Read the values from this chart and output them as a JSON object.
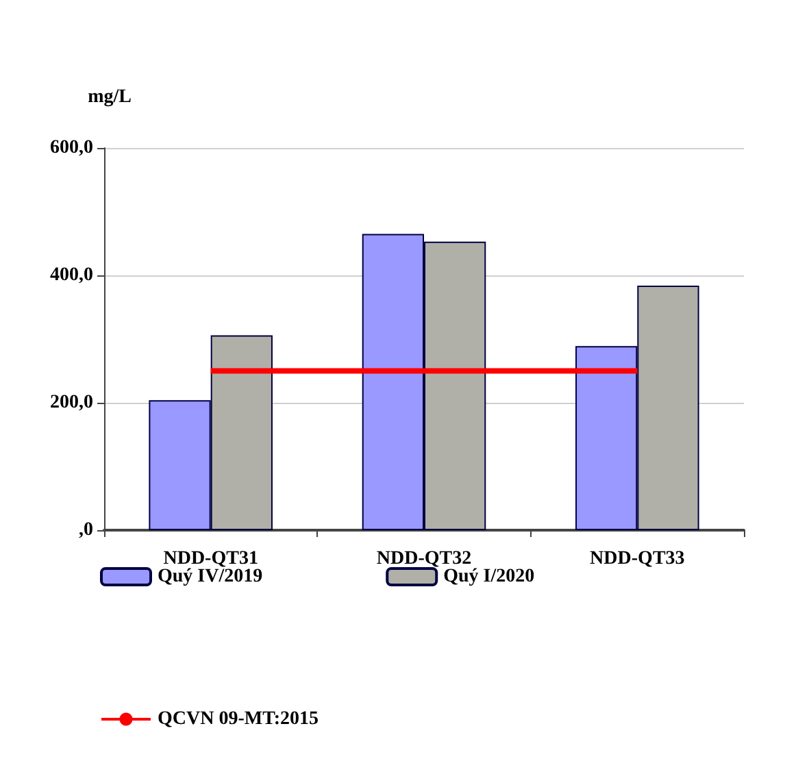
{
  "chart_data": {
    "type": "bar",
    "ylabel": "mg/L",
    "categories": [
      "NDD-QT31",
      "NDD-QT32",
      "NDD-QT33"
    ],
    "series": [
      {
        "name": "Quý IV/2019",
        "color": "#9999ff",
        "values": [
          204,
          465,
          289
        ]
      },
      {
        "name": "Quý I/2020",
        "color": "#b0b0a8",
        "values": [
          306,
          453,
          384
        ]
      },
      {
        "name": "QCVN 09-MT:2015",
        "type": "line",
        "color": "#ff0000",
        "values": [
          250,
          250,
          250
        ],
        "marker": "none"
      }
    ],
    "ylim": [
      0,
      600
    ],
    "yticks": [
      {
        "value": 0,
        "label": ",0"
      },
      {
        "value": 200,
        "label": "200,0"
      },
      {
        "value": 400,
        "label": "400,0"
      },
      {
        "value": 600,
        "label": "600,0"
      }
    ],
    "grid": "y",
    "legend": "bottom"
  }
}
